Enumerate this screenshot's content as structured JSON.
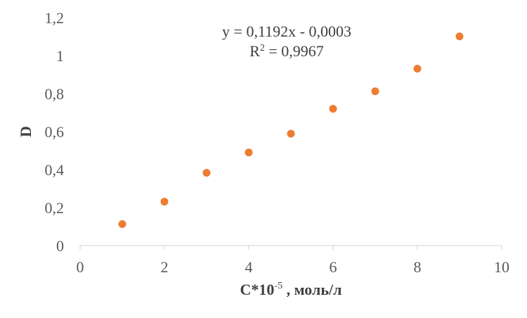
{
  "chart_data": {
    "type": "scatter",
    "x": [
      1,
      2,
      3,
      4,
      5,
      6,
      7,
      8,
      9
    ],
    "y": [
      0.113,
      0.231,
      0.383,
      0.49,
      0.589,
      0.72,
      0.812,
      0.931,
      1.101
    ],
    "xlim": [
      0,
      10
    ],
    "ylim": [
      0,
      1.2
    ],
    "x_ticks": [
      "0",
      "2",
      "4",
      "6",
      "8",
      "10"
    ],
    "y_ticks": [
      "0",
      "0,2",
      "0,4",
      "0,6",
      "0,8",
      "1",
      "1,2"
    ],
    "x_tick_values": [
      0,
      2,
      4,
      6,
      8,
      10
    ],
    "y_tick_values": [
      0,
      0.2,
      0.4,
      0.6,
      0.8,
      1.0,
      1.2
    ],
    "xlabel": {
      "main": "C*10",
      "sup": "-5",
      "rest": " , моль/л"
    },
    "ylabel": "D",
    "annotation": {
      "equation": "y = 0,1192x  - 0,0003",
      "r2_label": "R",
      "r2_sup": "2",
      "r2_value": " = 0,9967"
    },
    "grid": false,
    "legend": "none",
    "marker_color": "#ED7D31"
  }
}
